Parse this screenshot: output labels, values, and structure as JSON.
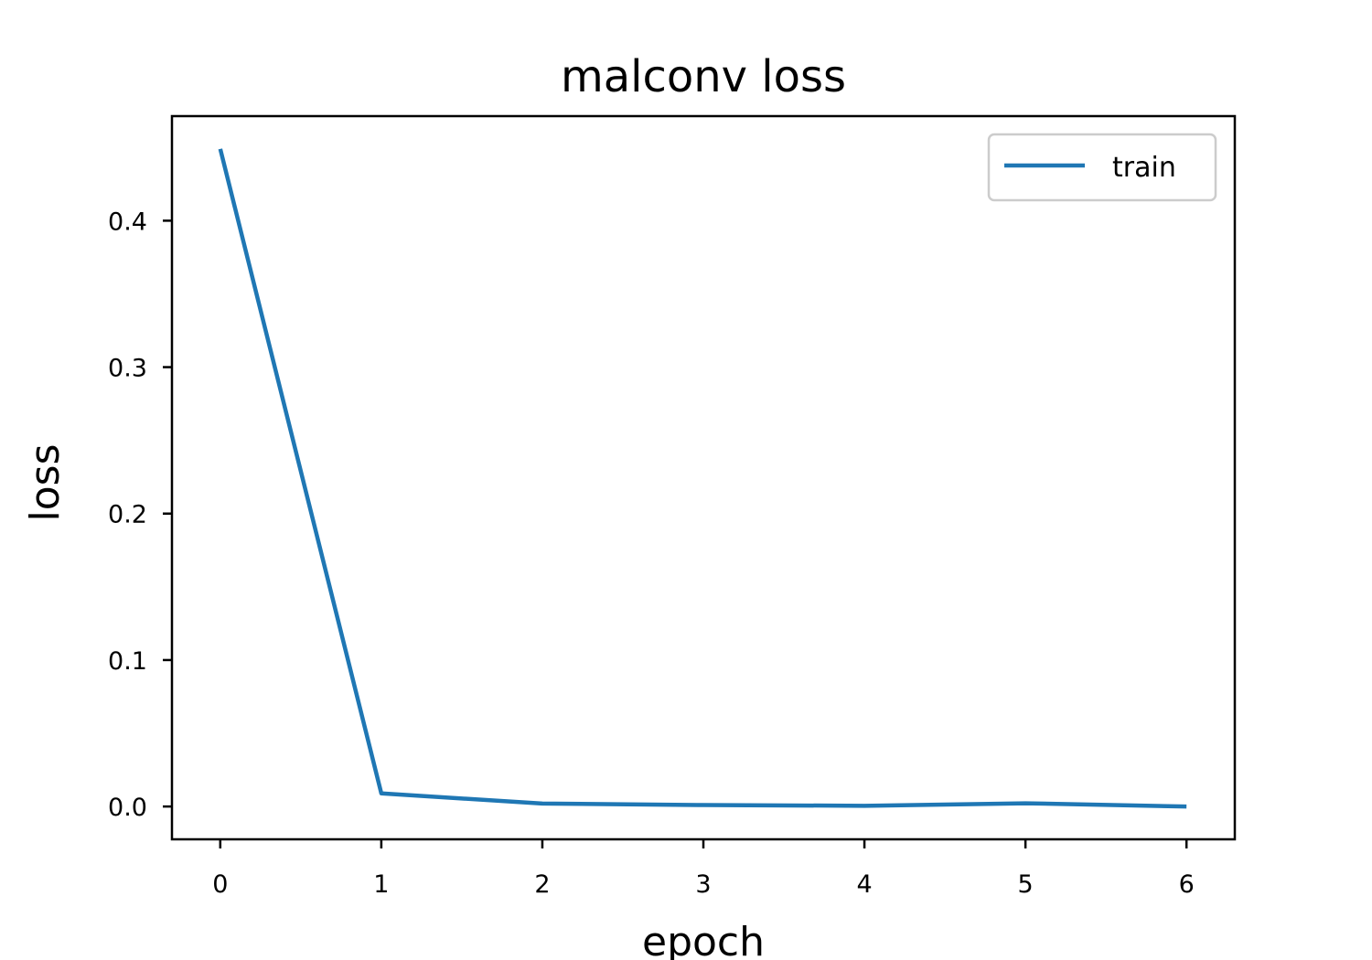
{
  "chart_data": {
    "type": "line",
    "title": "malconv loss",
    "xlabel": "epoch",
    "ylabel": "loss",
    "x": [
      0,
      1,
      2,
      3,
      4,
      5,
      6
    ],
    "series": [
      {
        "name": "train",
        "values": [
          0.449,
          0.009,
          0.002,
          0.001,
          0.0005,
          0.0022,
          0.0
        ],
        "color": "#1f77b4"
      }
    ],
    "xlim": [
      -0.3,
      6.3
    ],
    "ylim": [
      -0.0224,
      0.4714
    ],
    "xticks": [
      0,
      1,
      2,
      3,
      4,
      5,
      6
    ],
    "xtick_labels": [
      "0",
      "1",
      "2",
      "3",
      "4",
      "5",
      "6"
    ],
    "yticks": [
      0.0,
      0.1,
      0.2,
      0.3,
      0.4
    ],
    "ytick_labels": [
      "0.0",
      "0.1",
      "0.2",
      "0.3",
      "0.4"
    ],
    "grid": false,
    "legend_position": "top-right"
  }
}
